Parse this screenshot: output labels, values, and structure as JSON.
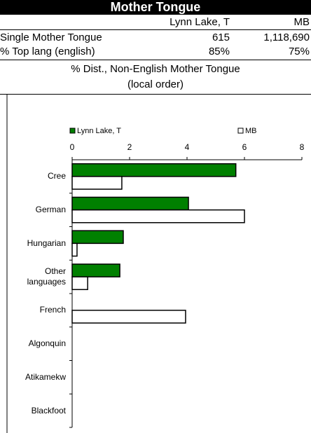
{
  "header": {
    "title": "Mother Tongue"
  },
  "table": {
    "columns": [
      "Lynn Lake, T",
      "MB"
    ],
    "rows": [
      [
        "Single Mother Tongue",
        "615",
        "1,118,690"
      ],
      [
        "% Top lang (english)",
        "85%",
        "75%"
      ]
    ]
  },
  "section": [
    "% Dist., Non-English Mother Tongue",
    "(local order)"
  ],
  "chart_data": {
    "type": "bar",
    "orientation": "horizontal",
    "categories": [
      "Cree",
      "German",
      "Hungarian",
      "Other languages",
      "French",
      "Algonquin",
      "Atikamekw",
      "Blackfoot"
    ],
    "series": [
      {
        "name": "Lynn Lake, T",
        "color": "#008000",
        "values": [
          5.7,
          4.05,
          1.78,
          1.66,
          0,
          0,
          0,
          0
        ]
      },
      {
        "name": "MB",
        "color": "#ffffff",
        "values": [
          1.73,
          6.0,
          0.17,
          0.54,
          3.95,
          0,
          0,
          0
        ]
      }
    ],
    "xlim": [
      0,
      8
    ],
    "xticks": [
      0,
      2,
      4,
      6,
      8
    ],
    "legend": "top"
  }
}
